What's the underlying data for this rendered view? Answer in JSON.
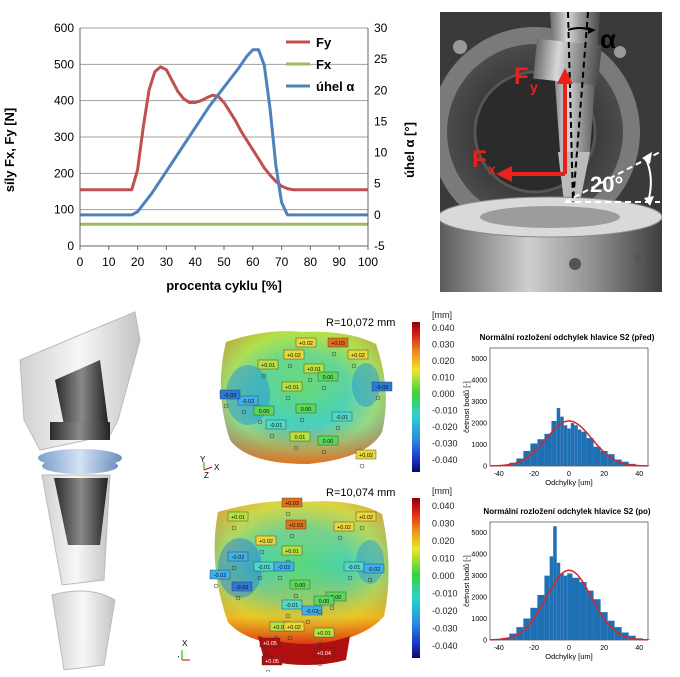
{
  "top_chart": {
    "type": "line",
    "xlabel": "procenta cyklu [%]",
    "ylabel_left": "síly Fx, Fy [N]",
    "ylabel_right": "úhel α [°]",
    "x_ticks": [
      "0",
      "10",
      "20",
      "30",
      "40",
      "50",
      "60",
      "70",
      "80",
      "90",
      "100"
    ],
    "y_left_ticks": [
      "0",
      "100",
      "200",
      "300",
      "400",
      "500",
      "600"
    ],
    "y_right_ticks": [
      "-5",
      "0",
      "5",
      "10",
      "15",
      "20",
      "25",
      "30"
    ],
    "xlim": [
      0,
      100
    ],
    "ylim_left": [
      0,
      600
    ],
    "ylim_right": [
      -5,
      30
    ],
    "grid": true,
    "legend": "top-right",
    "series": [
      {
        "name": "Fy",
        "axis": "left",
        "color": "#c0504d",
        "x": [
          0,
          5,
          10,
          15,
          18,
          20,
          22,
          24,
          26,
          28,
          30,
          32,
          34,
          36,
          38,
          40,
          42,
          44,
          46,
          48,
          50,
          52,
          54,
          56,
          58,
          60,
          62,
          64,
          66,
          68,
          70,
          72,
          74,
          76,
          80,
          90,
          100
        ],
        "y": [
          155,
          155,
          155,
          155,
          155,
          210,
          330,
          430,
          480,
          493,
          485,
          455,
          425,
          405,
          395,
          395,
          400,
          408,
          415,
          412,
          395,
          370,
          345,
          315,
          290,
          265,
          240,
          215,
          195,
          178,
          165,
          158,
          155,
          155,
          155,
          155,
          155
        ]
      },
      {
        "name": "Fx",
        "axis": "left",
        "color": "#9bbb59",
        "x": [
          0,
          100
        ],
        "y": [
          60,
          60
        ]
      },
      {
        "name": "úhel α",
        "axis": "right",
        "color": "#4f81bd",
        "x": [
          0,
          10,
          18,
          20,
          25,
          30,
          35,
          40,
          45,
          50,
          55,
          58,
          60,
          62,
          64,
          66,
          68,
          70,
          72,
          74,
          80,
          90,
          100
        ],
        "y": [
          0,
          0,
          0,
          0.5,
          3.5,
          7,
          10.5,
          14,
          17.5,
          20.5,
          23.5,
          25.5,
          26.5,
          26.5,
          24,
          17,
          8,
          2,
          0,
          0,
          0,
          0,
          0
        ]
      }
    ]
  },
  "photo": {
    "label_fy": "F",
    "label_fy_sub": "y",
    "label_fx": "F",
    "label_fx_sub": "x",
    "label_alpha": "α",
    "label_angle": "20°"
  },
  "deviation_maps": [
    {
      "radius_label": "R=10,072 mm",
      "values": [
        "+0.02",
        "+0.03",
        "+0.02",
        "+0.02",
        "+0.01",
        "+0.01",
        "+0.01",
        "0.00",
        "0.00",
        "0.00",
        "-0.01",
        "-0.01",
        "-0.02",
        "-0.03",
        "-0.03",
        "0.01",
        "0.00",
        "+0.02"
      ],
      "axis_x": "X",
      "axis_y": "Y",
      "axis_z": "Z"
    },
    {
      "radius_label": "R=10,074 mm",
      "values": [
        "+0.03",
        "+0.02",
        "+0.03",
        "+0.01",
        "+0.02",
        "+0.02",
        "+0.01",
        "-0.02",
        "-0.01",
        "-0.02",
        "-0.01",
        "0.00",
        "-0.02",
        "-0.03",
        "-0.02",
        "0.00",
        "-0.01",
        "-0.02",
        "0.00",
        "+0.01",
        "+0.02",
        "+0.01",
        "+0.05",
        "+0.04",
        "+0.05"
      ],
      "axis_x": "X",
      "axis_y": "Y",
      "axis_z": "Z"
    }
  ],
  "color_scale": {
    "unit": "[mm]",
    "ticks": [
      "0.040",
      "0.030",
      "0.020",
      "0.010",
      "0.000",
      "-0.010",
      "-0.020",
      "-0.030",
      "-0.040"
    ]
  },
  "histograms": [
    {
      "type": "histogram",
      "title": "Normální rozložení odchylek hlavice S2 (před)",
      "xlabel": "Odchylky [um]",
      "ylabel": "četnost bodů [-]",
      "x_ticks": [
        "-40",
        "-20",
        "0",
        "20",
        "40"
      ],
      "y_ticks": [
        "0",
        "1000",
        "2000",
        "3000",
        "4000",
        "5000"
      ],
      "xlim": [
        -45,
        45
      ],
      "ylim": [
        0,
        5500
      ],
      "bar_color": "#1f6fb5",
      "curve_color": "#d62728",
      "centers": [
        -40,
        -36,
        -32,
        -28,
        -24,
        -20,
        -16,
        -12,
        -8,
        -6,
        -4,
        -2,
        0,
        2,
        4,
        6,
        8,
        12,
        16,
        20,
        24,
        28,
        32,
        36,
        40,
        44
      ],
      "heights": [
        20,
        60,
        150,
        350,
        700,
        1050,
        1250,
        1500,
        2100,
        2700,
        2300,
        1900,
        1750,
        2000,
        1900,
        1700,
        1600,
        1300,
        900,
        700,
        550,
        300,
        200,
        100,
        40,
        20
      ],
      "curve_mean": 0,
      "curve_sd": 13,
      "curve_peak": 2100
    },
    {
      "type": "histogram",
      "title": "Normální rozložení odchylek hlavice S2 (po)",
      "xlabel": "Odchylky [um]",
      "ylabel": "četnost bodů [-]",
      "x_ticks": [
        "-40",
        "-20",
        "0",
        "20",
        "40"
      ],
      "y_ticks": [
        "0",
        "1000",
        "2000",
        "3000",
        "4000",
        "5000"
      ],
      "xlim": [
        -45,
        45
      ],
      "ylim": [
        0,
        5500
      ],
      "bar_color": "#1f6fb5",
      "curve_color": "#d62728",
      "centers": [
        -40,
        -36,
        -32,
        -28,
        -24,
        -20,
        -16,
        -12,
        -10,
        -8,
        -6,
        -4,
        -2,
        0,
        4,
        8,
        12,
        16,
        20,
        24,
        28,
        32,
        36,
        40,
        44
      ],
      "heights": [
        30,
        100,
        300,
        600,
        1000,
        1500,
        2100,
        3000,
        3900,
        5300,
        3600,
        3100,
        3000,
        3100,
        2900,
        2700,
        2300,
        1900,
        1300,
        900,
        600,
        350,
        200,
        80,
        30
      ],
      "curve_mean": 0,
      "curve_sd": 13,
      "curve_peak": 3250
    }
  ]
}
